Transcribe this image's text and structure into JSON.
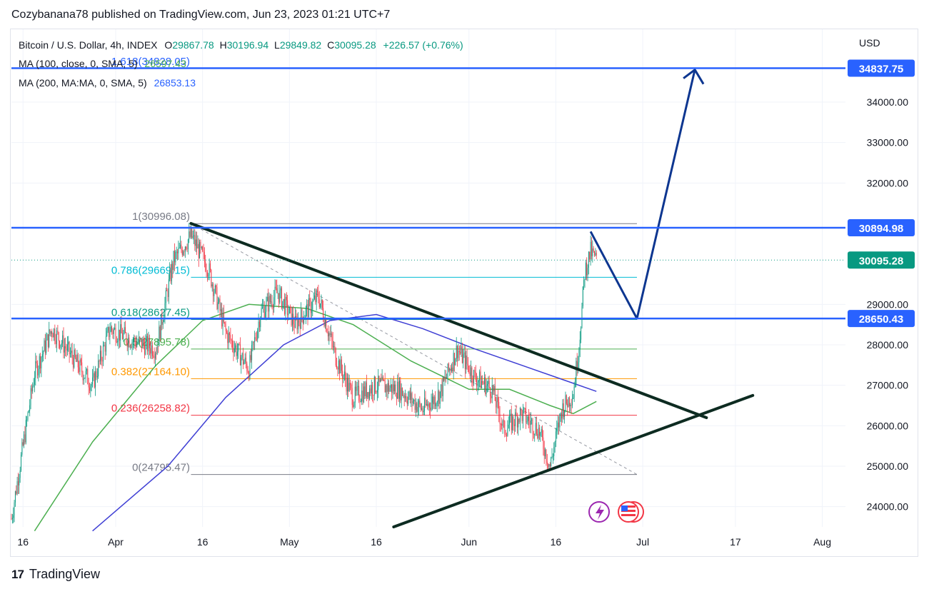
{
  "header": {
    "publisher": "Cozybanana78 published on TradingView.com, Jun 23, 2023 01:21 UTC+7"
  },
  "legend": {
    "symbol": "Bitcoin / U.S. Dollar, 4h, INDEX",
    "open_label": "O",
    "open": "29867.78",
    "high_label": "H",
    "high": "30196.94",
    "low_label": "L",
    "low": "29849.82",
    "close_label": "C",
    "close": "30095.28",
    "change": "+226.57 (+0.76%)",
    "ma100_label": "MA (100, close, 0, SMA, 5)",
    "ma100_value": "26597.43",
    "ma200_label": "MA (200, MA:MA, 0, SMA, 5)",
    "ma200_value": "26853.13"
  },
  "footer": {
    "brand": "TradingView"
  },
  "colors": {
    "up": "#089981",
    "down": "#f23645",
    "hline": "#2962ff",
    "trend": "#0d2b21",
    "arrow": "#0d3690",
    "ma100": "#4caf50",
    "ma200": "#3f3fd4",
    "price_badge": "#089981",
    "level_badge": "#2962ff"
  },
  "chart_data": {
    "type": "candlestick",
    "y_axis": {
      "title": "USD",
      "range": [
        23500,
        35800
      ],
      "ticks": [
        24000,
        25000,
        26000,
        27000,
        28000,
        29000,
        32000,
        33000,
        34000
      ],
      "tick_labels": [
        "24000.00",
        "25000.00",
        "26000.00",
        "27000.00",
        "28000.00",
        "29000.00",
        "32000.00",
        "33000.00",
        "34000.00"
      ]
    },
    "x_axis": {
      "range": [
        "2023-03-14",
        "2023-08-05"
      ],
      "ticks": [
        "2023-03-16",
        "2023-04-01",
        "2023-04-16",
        "2023-05-01",
        "2023-05-16",
        "2023-06-01",
        "2023-06-16",
        "2023-07-01",
        "2023-07-17",
        "2023-08-01"
      ],
      "tick_labels": [
        "16",
        "Apr",
        "16",
        "May",
        "16",
        "Jun",
        "16",
        "Jul",
        "17",
        "Aug"
      ]
    },
    "price_path": [
      [
        "2023-03-14",
        23700
      ],
      [
        "2023-03-18",
        27300
      ],
      [
        "2023-03-21",
        28400
      ],
      [
        "2023-03-25",
        27600
      ],
      [
        "2023-03-28",
        27000
      ],
      [
        "2023-03-31",
        28400
      ],
      [
        "2023-04-04",
        28100
      ],
      [
        "2023-04-08",
        27900
      ],
      [
        "2023-04-11",
        30100
      ],
      [
        "2023-04-14",
        30700
      ],
      [
        "2023-04-17",
        29900
      ],
      [
        "2023-04-20",
        28300
      ],
      [
        "2023-04-24",
        27400
      ],
      [
        "2023-04-26",
        28800
      ],
      [
        "2023-04-29",
        29300
      ],
      [
        "2023-05-02",
        28500
      ],
      [
        "2023-05-06",
        29200
      ],
      [
        "2023-05-09",
        27700
      ],
      [
        "2023-05-12",
        26700
      ],
      [
        "2023-05-16",
        27000
      ],
      [
        "2023-05-20",
        26900
      ],
      [
        "2023-05-24",
        26400
      ],
      [
        "2023-05-27",
        26800
      ],
      [
        "2023-05-30",
        27900
      ],
      [
        "2023-06-02",
        27200
      ],
      [
        "2023-06-05",
        26900
      ],
      [
        "2023-06-07",
        25900
      ],
      [
        "2023-06-10",
        26300
      ],
      [
        "2023-06-13",
        25900
      ],
      [
        "2023-06-15",
        25000
      ],
      [
        "2023-06-17",
        26400
      ],
      [
        "2023-06-19",
        26800
      ],
      [
        "2023-06-20",
        28000
      ],
      [
        "2023-06-21",
        29800
      ],
      [
        "2023-06-22",
        30300
      ],
      [
        "2023-06-23",
        30095
      ]
    ],
    "series": [
      {
        "name": "MA (100, close, 0, SMA, 5)",
        "value": "26597.43",
        "points": [
          [
            "2023-03-18",
            23400
          ],
          [
            "2023-03-28",
            25600
          ],
          [
            "2023-04-08",
            27500
          ],
          [
            "2023-04-16",
            28600
          ],
          [
            "2023-04-24",
            29000
          ],
          [
            "2023-05-04",
            28900
          ],
          [
            "2023-05-12",
            28500
          ],
          [
            "2023-05-22",
            27600
          ],
          [
            "2023-06-01",
            26900
          ],
          [
            "2023-06-08",
            26900
          ],
          [
            "2023-06-15",
            26500
          ],
          [
            "2023-06-19",
            26300
          ],
          [
            "2023-06-23",
            26600
          ]
        ]
      },
      {
        "name": "MA (200, MA:MA, 0, SMA, 5)",
        "value": "26853.13",
        "points": [
          [
            "2023-03-28",
            23400
          ],
          [
            "2023-04-10",
            25000
          ],
          [
            "2023-04-20",
            26700
          ],
          [
            "2023-04-30",
            28000
          ],
          [
            "2023-05-08",
            28600
          ],
          [
            "2023-05-16",
            28750
          ],
          [
            "2023-05-24",
            28400
          ],
          [
            "2023-06-02",
            27900
          ],
          [
            "2023-06-10",
            27500
          ],
          [
            "2023-06-18",
            27100
          ],
          [
            "2023-06-23",
            26850
          ]
        ]
      }
    ],
    "fibonacci": [
      {
        "label": "1.618(34828.05)",
        "value": 34828.05,
        "color": "#2962ff"
      },
      {
        "label": "1(30996.08)",
        "value": 30996.08,
        "color": "#787b86"
      },
      {
        "label": "0.786(29669.15)",
        "value": 29669.15,
        "color": "#00bcd4"
      },
      {
        "label": "0.618(28627.45)",
        "value": 28627.45,
        "color": "#089981"
      },
      {
        "label": "0.5(27895.78)",
        "value": 27895.78,
        "color": "#4caf50"
      },
      {
        "label": "0.382(27164.10)",
        "value": 27164.1,
        "color": "#ff9800"
      },
      {
        "label": "0.236(26258.82)",
        "value": 26258.82,
        "color": "#f23645"
      },
      {
        "label": "0(24795.47)",
        "value": 24795.47,
        "color": "#787b86"
      }
    ],
    "horizontal_levels": [
      {
        "label": "34837.75",
        "value": 34837.75
      },
      {
        "label": "30894.98",
        "value": 30894.98
      },
      {
        "label": "28650.43",
        "value": 28650.43
      }
    ],
    "current_price": {
      "label": "30095.28",
      "value": 30095.28
    },
    "trendlines": [
      {
        "name": "descending-resistance",
        "from": [
          "2023-04-14",
          31000
        ],
        "to": [
          "2023-07-12",
          26200
        ]
      },
      {
        "name": "ascending-support",
        "from": [
          "2023-05-19",
          23500
        ],
        "to": [
          "2023-07-20",
          26750
        ]
      }
    ],
    "projection": [
      [
        "2023-06-22",
        30800
      ],
      [
        "2023-06-30",
        28650
      ],
      [
        "2023-07-10",
        34800
      ]
    ]
  }
}
